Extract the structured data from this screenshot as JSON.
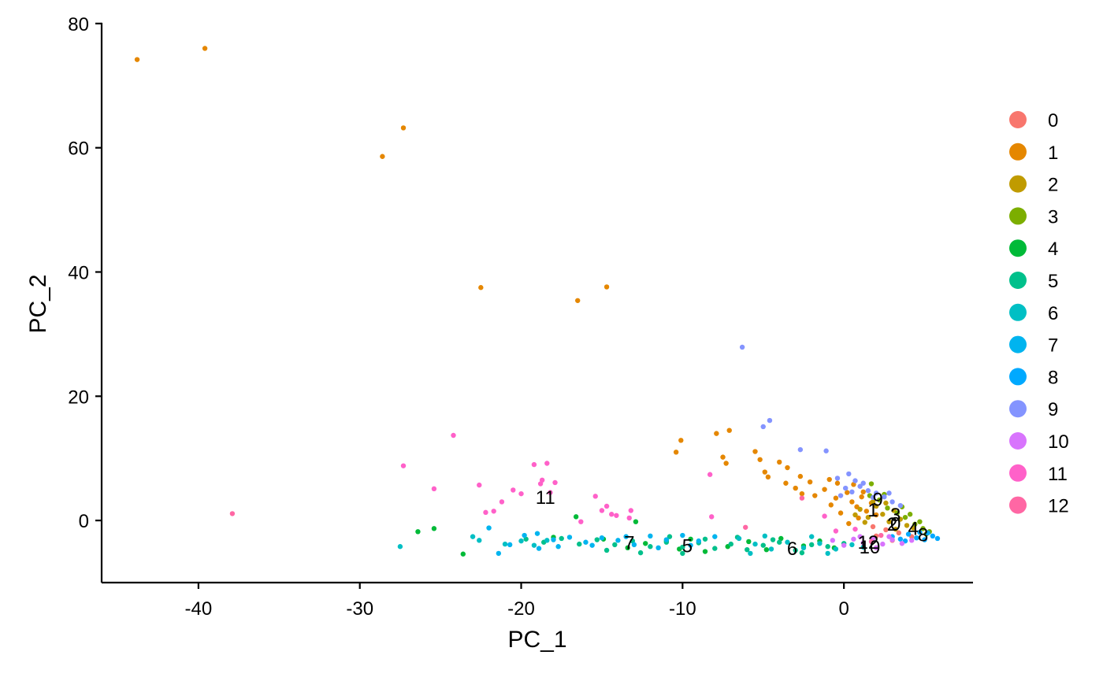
{
  "chart_data": {
    "type": "scatter",
    "title": "",
    "xlabel": "PC_1",
    "ylabel": "PC_2",
    "xlim": [
      -46,
      8
    ],
    "ylim": [
      -10,
      81
    ],
    "xticks": [
      -40,
      -30,
      -20,
      -10,
      0
    ],
    "yticks": [
      0,
      20,
      40,
      60,
      80
    ],
    "grid": false,
    "legend_position": "right",
    "series": [
      {
        "name": "0",
        "color": "#F8766D",
        "points": [
          [
            2.6,
            -1.5
          ],
          [
            3.4,
            -2.0
          ],
          [
            4.2,
            -2.6
          ],
          [
            1.8,
            -1.0
          ],
          [
            3.0,
            -3.2
          ],
          [
            2.0,
            -2.5
          ]
        ]
      },
      {
        "name": "1",
        "color": "#E58700",
        "points": [
          [
            -43.8,
            74.2
          ],
          [
            -39.6,
            76.0
          ],
          [
            -28.6,
            58.6
          ],
          [
            -27.3,
            63.2
          ],
          [
            -22.5,
            37.5
          ],
          [
            -16.5,
            35.4
          ],
          [
            -14.7,
            37.6
          ],
          [
            -10.1,
            12.9
          ],
          [
            -10.4,
            11.0
          ],
          [
            -7.9,
            14.0
          ],
          [
            -7.1,
            14.5
          ],
          [
            -7.5,
            10.2
          ],
          [
            -7.3,
            9.2
          ],
          [
            -5.5,
            11.1
          ],
          [
            -5.2,
            9.8
          ],
          [
            -4.9,
            7.8
          ],
          [
            -4.7,
            7.0
          ],
          [
            -4.0,
            9.4
          ],
          [
            -3.5,
            8.5
          ],
          [
            -3.6,
            6.0
          ],
          [
            -3.0,
            5.2
          ],
          [
            -2.7,
            7.1
          ],
          [
            -2.6,
            4.3
          ],
          [
            -2.1,
            6.2
          ],
          [
            -1.8,
            4.0
          ],
          [
            -1.2,
            5.0
          ],
          [
            -0.9,
            6.6
          ],
          [
            -0.5,
            3.6
          ],
          [
            -0.2,
            1.2
          ],
          [
            0.2,
            4.5
          ],
          [
            0.5,
            3.0
          ],
          [
            0.8,
            2.2
          ],
          [
            1.1,
            3.8
          ],
          [
            1.4,
            1.5
          ],
          [
            1.7,
            2.8
          ],
          [
            2.0,
            0.9
          ],
          [
            0.3,
            -0.5
          ],
          [
            0.9,
            0.4
          ],
          [
            1.2,
            4.6
          ],
          [
            0.6,
            5.8
          ],
          [
            -0.8,
            2.5
          ],
          [
            -0.4,
            6.0
          ]
        ]
      },
      {
        "name": "2",
        "color": "#C09B00",
        "points": [
          [
            1.0,
            1.8
          ],
          [
            1.5,
            0.5
          ],
          [
            2.0,
            2.3
          ],
          [
            2.4,
            1.0
          ],
          [
            2.8,
            -0.2
          ],
          [
            3.1,
            1.6
          ],
          [
            3.5,
            0.2
          ],
          [
            3.9,
            -0.8
          ],
          [
            4.3,
            -1.2
          ],
          [
            1.8,
            3.0
          ],
          [
            2.6,
            2.8
          ],
          [
            3.2,
            -1.4
          ],
          [
            0.7,
            0.9
          ],
          [
            1.3,
            -0.3
          ]
        ]
      },
      {
        "name": "3",
        "color": "#7CAE00",
        "points": [
          [
            1.6,
            4.0
          ],
          [
            2.2,
            3.3
          ],
          [
            2.7,
            2.0
          ],
          [
            3.3,
            1.2
          ],
          [
            3.8,
            0.5
          ],
          [
            4.4,
            -0.6
          ],
          [
            4.9,
            -1.3
          ],
          [
            5.3,
            -1.8
          ],
          [
            1.7,
            5.9
          ],
          [
            2.5,
            4.2
          ],
          [
            3.6,
            2.2
          ],
          [
            4.1,
            1.0
          ],
          [
            4.7,
            -0.2
          ],
          [
            5.1,
            -2.2
          ]
        ]
      },
      {
        "name": "4",
        "color": "#00BA38",
        "points": [
          [
            -26.4,
            -1.8
          ],
          [
            -25.4,
            -1.3
          ],
          [
            -23.6,
            -5.4
          ],
          [
            -18.0,
            -2.7
          ],
          [
            -14.9,
            -3.0
          ],
          [
            -13.4,
            -4.4
          ],
          [
            -12.3,
            -3.7
          ],
          [
            -11.0,
            -3.3
          ],
          [
            -10.2,
            -4.6
          ],
          [
            -9.5,
            -3.0
          ],
          [
            -8.6,
            -5.0
          ],
          [
            -7.2,
            -4.2
          ],
          [
            -5.9,
            -3.4
          ],
          [
            -4.8,
            -4.7
          ],
          [
            -3.9,
            -2.9
          ],
          [
            -2.5,
            -4.1
          ],
          [
            -1.5,
            -3.3
          ],
          [
            -0.6,
            -4.4
          ],
          [
            -12.9,
            -0.2
          ],
          [
            -16.6,
            0.6
          ]
        ]
      },
      {
        "name": "5",
        "color": "#00C08B",
        "points": [
          [
            -19.7,
            -3.0
          ],
          [
            -18.6,
            -3.5
          ],
          [
            -17.5,
            -2.9
          ],
          [
            -16.4,
            -3.8
          ],
          [
            -15.3,
            -3.1
          ],
          [
            -14.2,
            -3.9
          ],
          [
            -13.1,
            -3.3
          ],
          [
            -12.0,
            -4.2
          ],
          [
            -11.0,
            -3.5
          ],
          [
            -10.0,
            -4.3
          ],
          [
            -9.0,
            -3.6
          ],
          [
            -8.0,
            -4.5
          ],
          [
            -7.0,
            -3.8
          ],
          [
            -6.0,
            -4.7
          ],
          [
            -5.0,
            -4.0
          ],
          [
            -4.0,
            -3.5
          ],
          [
            -3.0,
            -4.8
          ],
          [
            -2.0,
            -3.9
          ],
          [
            -1.0,
            -4.2
          ],
          [
            0.0,
            -3.7
          ],
          [
            -8.6,
            -3.0
          ],
          [
            -10.8,
            -2.6
          ],
          [
            -12.6,
            -5.2
          ],
          [
            -14.7,
            -4.8
          ],
          [
            -6.6,
            -2.7
          ],
          [
            -4.4,
            -3.1
          ],
          [
            -2.6,
            -5.2
          ],
          [
            -10.0,
            -5.3
          ]
        ]
      },
      {
        "name": "6",
        "color": "#00BFC4",
        "points": [
          [
            -27.5,
            -4.2
          ],
          [
            -23.0,
            -2.6
          ],
          [
            -22.6,
            -3.2
          ],
          [
            -21.0,
            -3.8
          ],
          [
            -20.0,
            -3.3
          ],
          [
            -19.2,
            -4.0
          ],
          [
            -18.4,
            -3.2
          ],
          [
            -6.5,
            -2.9
          ],
          [
            -5.5,
            -3.8
          ],
          [
            -4.5,
            -4.6
          ],
          [
            -3.5,
            -3.5
          ],
          [
            -2.5,
            -4.4
          ],
          [
            -1.5,
            -3.7
          ],
          [
            -0.5,
            -4.6
          ],
          [
            0.5,
            -3.9
          ],
          [
            1.2,
            -4.3
          ],
          [
            -4.9,
            -2.5
          ],
          [
            -2.0,
            -2.6
          ],
          [
            -5.8,
            -5.3
          ],
          [
            -1.0,
            -5.3
          ]
        ]
      },
      {
        "name": "7",
        "color": "#00B4EF",
        "points": [
          [
            -22.0,
            -1.2
          ],
          [
            -21.4,
            -5.3
          ],
          [
            -20.7,
            -3.9
          ],
          [
            -19.8,
            -2.4
          ],
          [
            -18.9,
            -4.5
          ],
          [
            -18.0,
            -3.1
          ],
          [
            -17.0,
            -2.7
          ],
          [
            -16.0,
            -3.5
          ],
          [
            -15.0,
            -2.8
          ],
          [
            -14.0,
            -3.2
          ],
          [
            -13.0,
            -3.9
          ],
          [
            -12.0,
            -2.5
          ],
          [
            -11.0,
            -3.1
          ],
          [
            -10.0,
            -2.4
          ],
          [
            -9.0,
            -3.3
          ],
          [
            -8.0,
            -2.6
          ],
          [
            -19.0,
            -2.1
          ],
          [
            -17.7,
            -4.2
          ],
          [
            -15.6,
            -4.0
          ],
          [
            -13.5,
            -2.6
          ],
          [
            -11.5,
            -4.4
          ],
          [
            -9.5,
            -4.0
          ]
        ]
      },
      {
        "name": "8",
        "color": "#00A9FF",
        "points": [
          [
            3.0,
            -2.6
          ],
          [
            3.5,
            -3.0
          ],
          [
            4.0,
            -2.2
          ],
          [
            4.5,
            -2.8
          ],
          [
            5.0,
            -3.1
          ],
          [
            5.5,
            -2.5
          ],
          [
            5.8,
            -2.9
          ],
          [
            4.7,
            -1.9
          ],
          [
            3.8,
            -3.3
          ],
          [
            5.2,
            -2.0
          ]
        ]
      },
      {
        "name": "9",
        "color": "#8494FF",
        "points": [
          [
            -6.3,
            27.9
          ],
          [
            -4.6,
            16.1
          ],
          [
            -5.0,
            15.1
          ],
          [
            -2.7,
            11.4
          ],
          [
            -1.1,
            11.2
          ],
          [
            -0.4,
            6.8
          ],
          [
            0.3,
            7.5
          ],
          [
            0.7,
            6.4
          ],
          [
            1.0,
            5.5
          ],
          [
            1.5,
            4.8
          ],
          [
            2.0,
            4.4
          ],
          [
            2.5,
            3.8
          ],
          [
            3.0,
            3.0
          ],
          [
            3.5,
            2.4
          ],
          [
            0.1,
            5.2
          ],
          [
            0.5,
            4.6
          ],
          [
            1.2,
            6.0
          ],
          [
            2.8,
            4.4
          ],
          [
            -0.2,
            4.0
          ],
          [
            1.8,
            3.7
          ]
        ]
      },
      {
        "name": "10",
        "color": "#D874FD",
        "points": [
          [
            -0.7,
            -3.2
          ],
          [
            0.0,
            -4.0
          ],
          [
            0.6,
            -3.0
          ],
          [
            1.2,
            -3.6
          ],
          [
            1.8,
            -2.9
          ],
          [
            2.4,
            -3.8
          ],
          [
            3.0,
            -3.1
          ],
          [
            3.6,
            -3.7
          ],
          [
            4.2,
            -3.2
          ],
          [
            2.0,
            -4.4
          ],
          [
            1.0,
            -2.6
          ],
          [
            2.8,
            -2.6
          ]
        ]
      },
      {
        "name": "11",
        "color": "#FF61C9",
        "points": [
          [
            -24.2,
            13.7
          ],
          [
            -27.3,
            8.8
          ],
          [
            -25.4,
            5.1
          ],
          [
            -22.6,
            5.7
          ],
          [
            -22.2,
            1.3
          ],
          [
            -21.7,
            1.5
          ],
          [
            -21.2,
            3.0
          ],
          [
            -20.5,
            4.9
          ],
          [
            -20.0,
            4.3
          ],
          [
            -19.2,
            9.0
          ],
          [
            -18.4,
            9.2
          ],
          [
            -18.7,
            6.5
          ],
          [
            -18.8,
            5.9
          ],
          [
            -18.2,
            4.5
          ],
          [
            -17.9,
            6.1
          ],
          [
            -15.4,
            3.9
          ],
          [
            -15.0,
            1.6
          ],
          [
            -14.7,
            2.3
          ],
          [
            -14.4,
            1.0
          ],
          [
            -14.1,
            0.8
          ],
          [
            -13.2,
            1.6
          ],
          [
            -13.3,
            0.4
          ],
          [
            -16.3,
            -0.2
          ],
          [
            -8.3,
            7.4
          ],
          [
            -8.2,
            0.6
          ],
          [
            -1.2,
            0.7
          ],
          [
            -0.5,
            -1.7
          ],
          [
            0.7,
            -1.4
          ]
        ]
      },
      {
        "name": "12",
        "color": "#FF67A4",
        "points": [
          [
            -37.9,
            1.1
          ],
          [
            -6.1,
            -1.1
          ],
          [
            -2.6,
            3.6
          ],
          [
            1.7,
            -3.4
          ],
          [
            2.3,
            -2.4
          ]
        ]
      }
    ],
    "cluster_labels": [
      {
        "text": "11",
        "x": -18.5,
        "y": 3.8
      },
      {
        "text": "7",
        "x": -13.3,
        "y": -3.5
      },
      {
        "text": "5",
        "x": -9.7,
        "y": -4.0
      },
      {
        "text": "6",
        "x": -3.2,
        "y": -4.4
      },
      {
        "text": "9",
        "x": 2.1,
        "y": 3.5
      },
      {
        "text": "1",
        "x": 1.8,
        "y": 1.8
      },
      {
        "text": "3",
        "x": 3.2,
        "y": 1.0
      },
      {
        "text": "2",
        "x": 3.0,
        "y": -0.5
      },
      {
        "text": "0",
        "x": 3.2,
        "y": -0.4
      },
      {
        "text": "4",
        "x": 4.3,
        "y": -1.2
      },
      {
        "text": "8",
        "x": 4.9,
        "y": -2.2
      },
      {
        "text": "12",
        "x": 1.5,
        "y": -3.4
      },
      {
        "text": "10",
        "x": 1.6,
        "y": -4.2
      }
    ]
  }
}
